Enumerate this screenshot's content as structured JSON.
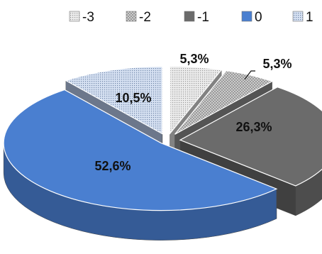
{
  "chart_data": {
    "type": "pie",
    "style": "3d-exploded",
    "legend_position": "top",
    "series": [
      {
        "name": "-3",
        "value": 5.3,
        "label": "5,3%",
        "color": "#d9d9d9",
        "pattern": "dense-dots"
      },
      {
        "name": "-2",
        "value": 5.3,
        "label": "5,3%",
        "color": "#8c8c8c",
        "pattern": "dots"
      },
      {
        "name": "-1",
        "value": 26.3,
        "label": "26,3%",
        "color": "#6b6b6b",
        "pattern": "solid"
      },
      {
        "name": "0",
        "value": 52.6,
        "label": "52,6%",
        "color": "#4a7fd0",
        "pattern": "solid"
      },
      {
        "name": "1",
        "value": 10.5,
        "label": "10,5%",
        "color": "#b4c7e7",
        "pattern": "dense-dots"
      }
    ]
  }
}
